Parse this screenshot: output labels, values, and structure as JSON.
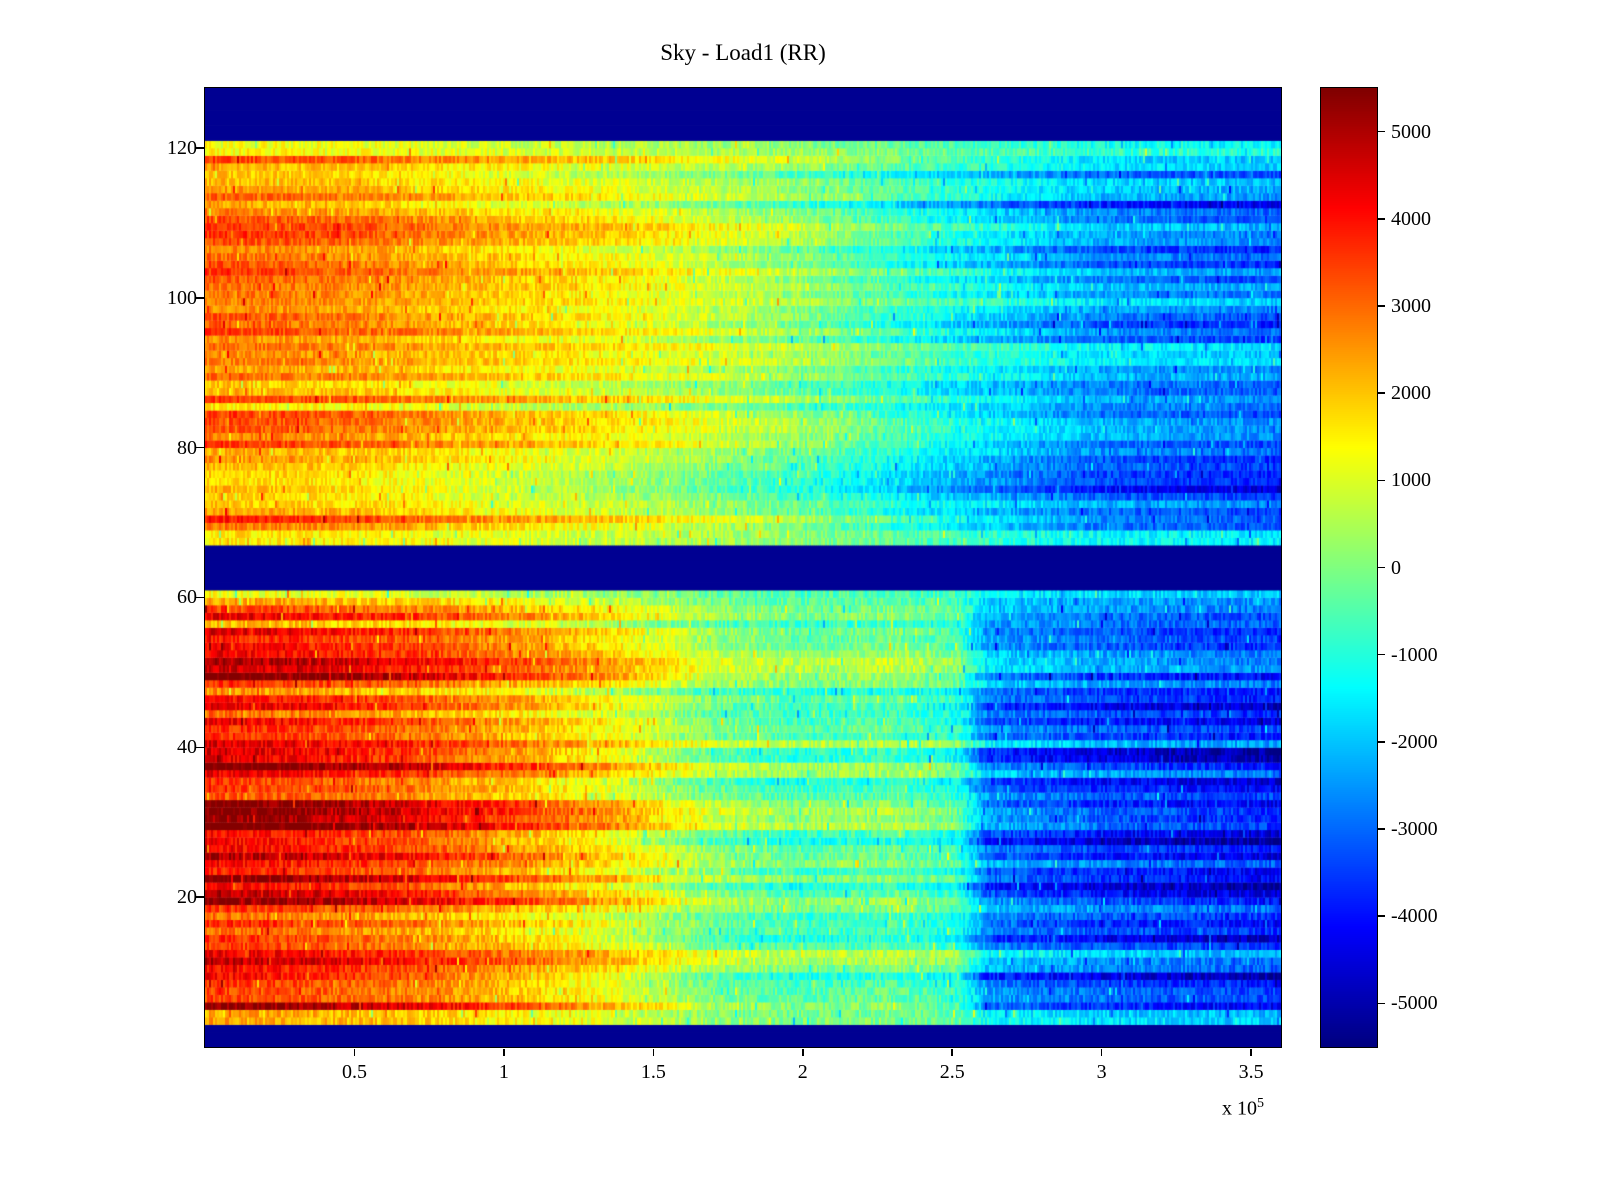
{
  "chart_data": {
    "type": "heatmap",
    "title": "Sky - Load1 (RR)",
    "xlabel": "",
    "ylabel": "",
    "xlim": [
      0,
      360000
    ],
    "ylim": [
      0,
      128
    ],
    "clim": [
      -5500,
      5500
    ],
    "colormap": "jet",
    "grid": false,
    "legend": "colorbar-right",
    "x_ticks": {
      "values": [
        50000,
        100000,
        150000,
        200000,
        250000,
        300000,
        350000
      ],
      "labels": [
        "0.5",
        "1",
        "1.5",
        "2",
        "2.5",
        "3",
        "3.5"
      ],
      "exponent_prefix": "x 10",
      "exponent": "5"
    },
    "y_ticks": {
      "values": [
        20,
        40,
        60,
        80,
        100,
        120
      ],
      "labels": [
        "20",
        "40",
        "60",
        "80",
        "100",
        "120"
      ]
    },
    "colorbar_ticks": {
      "values": [
        5000,
        4000,
        3000,
        2000,
        1000,
        0,
        -1000,
        -2000,
        -3000,
        -4000,
        -5000
      ],
      "labels": [
        "5000",
        "4000",
        "3000",
        "2000",
        "1000",
        "0",
        "-1000",
        "-2000",
        "-3000",
        "-4000",
        "-5000"
      ]
    },
    "background_bands": [
      {
        "y_from": 0,
        "y_to": 3,
        "value": -5300
      },
      {
        "y_from": 61,
        "y_to": 67,
        "value": -5300
      },
      {
        "y_from": 121,
        "y_to": 128,
        "value": -5300
      }
    ],
    "blocks": [
      {
        "name": "lower-channel-block",
        "y_from": 3,
        "y_to": 61,
        "profile_x": [
          0,
          30000,
          70000,
          110000,
          140000,
          170000,
          200000,
          230000,
          252000,
          262000,
          300000,
          360000
        ],
        "profile_v": [
          4600,
          4300,
          3600,
          2500,
          1500,
          100,
          -500,
          -250,
          -900,
          -3000,
          -3700,
          -4300
        ],
        "row_variance": 1500,
        "noise": 1200
      },
      {
        "name": "upper-channel-block",
        "y_from": 67,
        "y_to": 121,
        "profile_x": [
          0,
          50000,
          100000,
          150000,
          200000,
          250000,
          300000,
          360000
        ],
        "profile_v": [
          3100,
          2700,
          1900,
          1150,
          100,
          -1400,
          -2700,
          -3200
        ],
        "row_variance": 1250,
        "noise": 1100
      }
    ],
    "noise_seed": 20
  }
}
